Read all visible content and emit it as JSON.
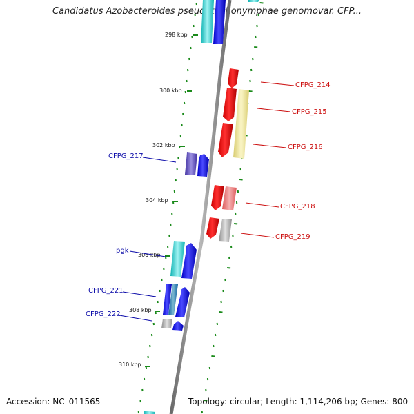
{
  "title": "Candidatus Azobacteroides pseudotrichonymphae genomovar. CFP...",
  "footer": {
    "accession": "Accession: NC_011565",
    "summary": "Topology: circular; Length: 1,114,206 bp; Genes: 800"
  },
  "colors": {
    "backbone": "#888888",
    "ticks": "#1a8a1a",
    "label_left": "#0a0aa8",
    "label_right": "#cc1111"
  },
  "scale_ticks": [
    "298 kbp",
    "300 kbp",
    "302 kbp",
    "304 kbp",
    "306 kbp",
    "308 kbp",
    "310 kbp"
  ],
  "gene_labels": {
    "left": [
      "CFPG_217",
      "pgk",
      "CFPG_221",
      "CFPG_222"
    ],
    "right": [
      "CFPG_214",
      "CFPG_215",
      "CFPG_216",
      "CFPG_218",
      "CFPG_219"
    ]
  }
}
